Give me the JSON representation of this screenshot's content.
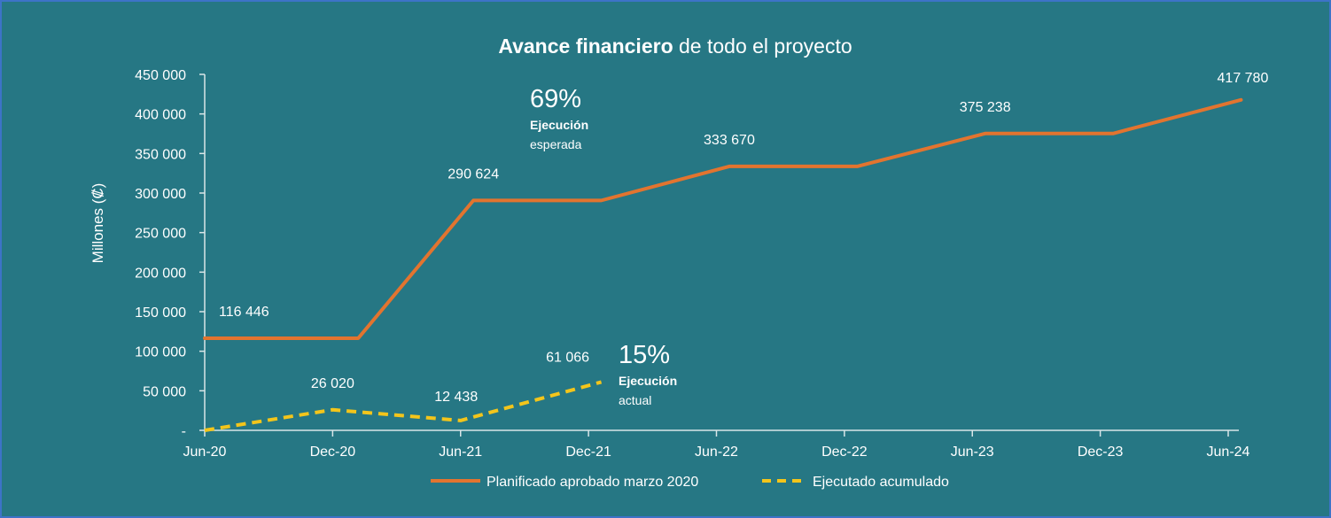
{
  "colors": {
    "background": "#267784",
    "border": "#3d73c7",
    "planned": "#e2742f",
    "executed": "#f3c51b",
    "text": "#ffffff"
  },
  "chart_data": {
    "type": "line",
    "title_bold": "Avance financiero",
    "title_rest": " de todo el proyecto",
    "ylabel": "Millones (₡)",
    "xlabel": "",
    "ylim": [
      0,
      450000
    ],
    "y_ticks": [
      {
        "value": 0,
        "label": "-"
      },
      {
        "value": 50000,
        "label": "50 000"
      },
      {
        "value": 100000,
        "label": "100 000"
      },
      {
        "value": 150000,
        "label": "150 000"
      },
      {
        "value": 200000,
        "label": "200 000"
      },
      {
        "value": 250000,
        "label": "250 000"
      },
      {
        "value": 300000,
        "label": "300 000"
      },
      {
        "value": 350000,
        "label": "350 000"
      },
      {
        "value": 400000,
        "label": "400 000"
      },
      {
        "value": 450000,
        "label": "450 000"
      }
    ],
    "categories": [
      "Jun-20",
      "Dec-20",
      "Jun-21",
      "Dec-21",
      "Jun-22",
      "Dec-22",
      "Jun-23",
      "Dec-23",
      "Jun-24"
    ],
    "grid": false,
    "legend_position": "bottom",
    "series": [
      {
        "name": "Planificado aprobado marzo 2020",
        "style": "solid",
        "color": "#e2742f",
        "points": [
          {
            "x": 0,
            "y": 116446
          },
          {
            "x": 1.2,
            "y": 116446
          },
          {
            "x": 2.1,
            "y": 290624
          },
          {
            "x": 3.1,
            "y": 290624
          },
          {
            "x": 4.1,
            "y": 333670
          },
          {
            "x": 5.1,
            "y": 333670
          },
          {
            "x": 6.1,
            "y": 375238
          },
          {
            "x": 7.1,
            "y": 375238
          },
          {
            "x": 8.1,
            "y": 417780
          }
        ],
        "labels": [
          {
            "x": 0,
            "y": 116446,
            "text": "116 446"
          },
          {
            "x": 2.1,
            "y": 290624,
            "text": "290 624"
          },
          {
            "x": 4.1,
            "y": 333670,
            "text": "333 670"
          },
          {
            "x": 6.1,
            "y": 375238,
            "text": "375 238"
          },
          {
            "x": 8.1,
            "y": 417780,
            "text": "417 780"
          }
        ]
      },
      {
        "name": "Ejecutado acumulado",
        "style": "dashed",
        "color": "#f3c51b",
        "points": [
          {
            "x": 0,
            "y": 0
          },
          {
            "x": 1.0,
            "y": 26020
          },
          {
            "x": 2.0,
            "y": 12438
          },
          {
            "x": 3.1,
            "y": 61066
          }
        ],
        "labels": [
          {
            "x": 1.0,
            "y": 26020,
            "text": "26 020"
          },
          {
            "x": 2.0,
            "y": 12438,
            "text": "12 438"
          },
          {
            "x": 3.1,
            "y": 61066,
            "text": "61 066"
          }
        ]
      }
    ],
    "annotations": [
      {
        "percent": "69%",
        "bold": "Ejecución",
        "sub": "esperada"
      },
      {
        "percent": "15%",
        "bold": "Ejecución",
        "sub": "actual"
      }
    ]
  }
}
